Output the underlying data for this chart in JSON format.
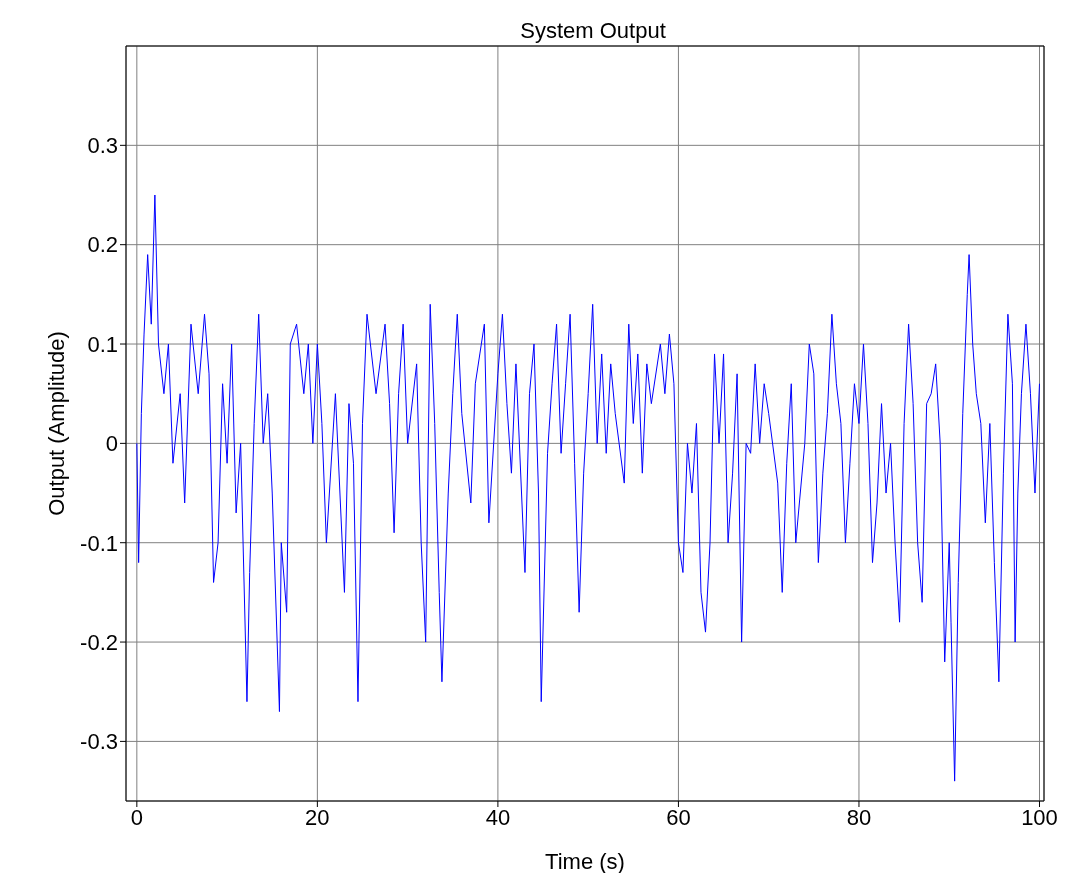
{
  "chart_data": {
    "type": "line",
    "title": "System Output",
    "xlabel": "Time (s)",
    "ylabel": "Output (Amplitude)",
    "x": [
      0,
      0.2,
      0.5,
      0.8,
      1.2,
      1.6,
      2.0,
      2.4,
      3,
      3.5,
      4,
      4.8,
      5.3,
      6,
      6.8,
      7.5,
      8,
      8.5,
      9,
      9.5,
      10,
      10.5,
      11,
      11.5,
      12.2,
      12.5,
      13,
      13.5,
      14,
      14.5,
      15,
      15.8,
      16,
      16.6,
      17,
      17.7,
      18.5,
      19,
      19.5,
      20,
      20.5,
      21,
      22,
      23,
      23.5,
      24,
      24.5,
      25,
      25.5,
      26.5,
      27.5,
      28,
      28.5,
      29,
      29.5,
      30,
      31,
      31.5,
      32,
      32.5,
      33,
      33.5,
      33.8,
      34.5,
      35,
      35.5,
      36,
      37,
      37.5,
      38,
      38.5,
      39,
      40,
      40.5,
      41,
      41.5,
      42,
      43,
      43.5,
      44,
      44.5,
      44.8,
      45.5,
      46,
      46.5,
      47,
      47.5,
      48,
      48.5,
      49,
      49.5,
      50,
      50.5,
      51,
      51.5,
      52,
      52.5,
      53,
      54,
      54.5,
      55,
      55.5,
      56,
      56.5,
      57,
      58,
      58.5,
      59,
      59.5,
      60,
      60.5,
      61,
      61.5,
      62,
      62.5,
      63,
      63.5,
      64,
      64.5,
      65,
      65.5,
      66,
      66.5,
      67,
      67.5,
      68,
      68.5,
      69,
      69.5,
      70,
      71,
      71.5,
      72,
      72.5,
      73,
      74,
      74.5,
      75,
      75.5,
      76,
      76.5,
      77,
      77.5,
      78,
      78.5,
      79,
      79.5,
      80,
      80.5,
      81,
      81.5,
      82,
      82.5,
      83,
      83.5,
      84,
      84.5,
      85,
      85.5,
      86,
      86.5,
      87,
      87.5,
      88,
      88.5,
      89,
      89.5,
      90,
      90.2,
      90.6,
      91,
      91.5,
      92,
      92.2,
      92.6,
      93,
      93.5,
      94,
      94.5,
      95,
      95.5,
      96,
      96.5,
      97,
      97.3,
      97.6,
      98,
      98.5,
      99,
      99.5,
      100
    ],
    "series": [
      {
        "color": "#0000ff",
        "values": [
          0,
          -0.12,
          0.03,
          0.11,
          0.19,
          0.12,
          0.25,
          0.1,
          0.05,
          0.1,
          -0.02,
          0.05,
          -0.06,
          0.12,
          0.05,
          0.13,
          0.07,
          -0.14,
          -0.1,
          0.06,
          -0.02,
          0.1,
          -0.07,
          0,
          -0.26,
          -0.13,
          0.02,
          0.13,
          0,
          0.05,
          -0.05,
          -0.27,
          -0.1,
          -0.17,
          0.1,
          0.12,
          0.05,
          0.1,
          0,
          0.1,
          0.02,
          -0.1,
          0.05,
          -0.15,
          0.04,
          -0.02,
          -0.26,
          0.02,
          0.13,
          0.05,
          0.12,
          0.04,
          -0.09,
          0.05,
          0.12,
          0,
          0.08,
          -0.1,
          -0.2,
          0.14,
          0.02,
          -0.15,
          -0.24,
          -0.05,
          0.05,
          0.13,
          0.03,
          -0.06,
          0.06,
          0.09,
          0.12,
          -0.08,
          0.07,
          0.13,
          0.04,
          -0.03,
          0.08,
          -0.13,
          0.05,
          0.1,
          -0.05,
          -0.26,
          -0.01,
          0.06,
          0.12,
          -0.01,
          0.06,
          0.13,
          -0.02,
          -0.17,
          -0.03,
          0.05,
          0.14,
          0,
          0.09,
          -0.01,
          0.08,
          0.03,
          -0.04,
          0.12,
          0.02,
          0.09,
          -0.03,
          0.08,
          0.04,
          0.1,
          0.05,
          0.11,
          0.06,
          -0.1,
          -0.13,
          0,
          -0.05,
          0.02,
          -0.15,
          -0.19,
          -0.1,
          0.09,
          0,
          0.09,
          -0.1,
          -0.03,
          0.07,
          -0.2,
          0,
          -0.01,
          0.08,
          0,
          0.06,
          0.03,
          -0.04,
          -0.15,
          -0.02,
          0.06,
          -0.1,
          0,
          0.1,
          0.07,
          -0.12,
          -0.03,
          0.03,
          0.13,
          0.06,
          0.02,
          -0.1,
          -0.02,
          0.06,
          0.02,
          0.1,
          0.02,
          -0.12,
          -0.06,
          0.04,
          -0.05,
          0,
          -0.1,
          -0.18,
          0.02,
          0.12,
          0.04,
          -0.1,
          -0.16,
          0.04,
          0.05,
          0.08,
          0,
          -0.22,
          -0.1,
          -0.18,
          -0.34,
          -0.14,
          0.03,
          0.15,
          0.19,
          0.1,
          0.05,
          0.02,
          -0.08,
          0.02,
          -0.12,
          -0.24,
          -0.03,
          0.13,
          0.06,
          -0.2,
          -0.05,
          0.05,
          0.12,
          0.05,
          -0.05,
          0.06
        ]
      }
    ],
    "xlim": [
      -1.2,
      100.5
    ],
    "xticks": [
      0,
      20,
      40,
      60,
      80,
      100
    ],
    "ylim": [
      -0.36,
      0.4
    ],
    "yticks": [
      -0.3,
      -0.2,
      -0.1,
      0,
      0.1,
      0.2,
      0.3
    ],
    "grid": true,
    "marker": "none",
    "line_style": "solid"
  }
}
